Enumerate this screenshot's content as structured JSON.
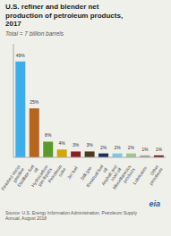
{
  "chart_data": {
    "type": "bar",
    "title": "U.S. refiner and blender net\nproduction of petroleum products,\n2017",
    "subtitle": "Total = 7 billion barrels",
    "source": "Source: U.S. Energy Information Administration, Petroleum Supply\nAnnual, August 2018",
    "annotations": [
      "eia"
    ],
    "categories": [
      "Finished motor\ngasoline",
      "Distillate fuel\noil",
      "Hydrocarbon\ngas liquids",
      "Petroleum\ncoke",
      "Jet fuel",
      "Still gas",
      "Residual fuel\noil",
      "Asphalt and\nroad oil",
      "Miscellaneous\nproducts",
      "Lubricants",
      "Other\npetroleum"
    ],
    "values": [
      49,
      25,
      8,
      4,
      3,
      3,
      2,
      2,
      2,
      1,
      1
    ],
    "value_labels": [
      "49%",
      "25%",
      "8%",
      "4%",
      "3%",
      "3%",
      "2%",
      "2%",
      "2%",
      "1%",
      "1%"
    ],
    "colors": [
      "#3daee9",
      "#b5651d",
      "#5a9a2a",
      "#d4a800",
      "#8b2020",
      "#4a3b1c",
      "#1a2f5a",
      "#7ec8e3",
      "#9dc88d",
      "#a0a0a0",
      "#6b1515"
    ],
    "ylim": [
      0,
      58
    ],
    "data_labels": true,
    "tick_labels": "x",
    "grid": false
  }
}
